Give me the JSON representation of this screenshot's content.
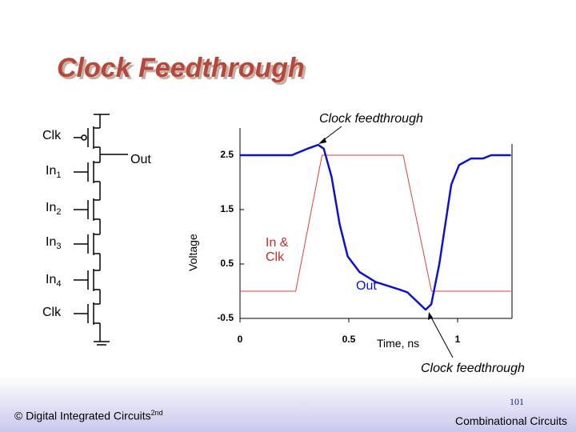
{
  "title": "Clock Feedthrough",
  "circuit": {
    "labels": [
      {
        "text": "Clk"
      },
      {
        "text": "Out"
      },
      {
        "text": "In",
        "sub": "1"
      },
      {
        "text": "In",
        "sub": "2"
      },
      {
        "text": "In",
        "sub": "3"
      },
      {
        "text": "In",
        "sub": "4"
      },
      {
        "text": "Clk"
      }
    ]
  },
  "chart_data": {
    "type": "line",
    "xlabel": "Time, ns",
    "ylabel": "Voltage",
    "xlim": [
      0,
      1.25
    ],
    "ylim": [
      -0.5,
      3
    ],
    "xticks": [
      0,
      0.5,
      1
    ],
    "yticks": [
      -0.5,
      0.5,
      1.5,
      2.5
    ],
    "series": [
      {
        "name": "In & Clk",
        "color": "#e0403a",
        "x": [
          0,
          0.256,
          0.377,
          0.75,
          0.88,
          1.245
        ],
        "values": [
          0,
          0,
          2.5,
          2.5,
          0,
          0
        ]
      },
      {
        "name": "Out",
        "color": "#1010d0",
        "x": [
          0,
          0.238,
          0.311,
          0.359,
          0.385,
          0.421,
          0.458,
          0.495,
          0.55,
          0.623,
          0.733,
          0.769,
          0.806,
          0.853,
          0.879,
          0.916,
          0.971,
          1.007,
          1.062,
          1.117,
          1.154,
          1.245
        ],
        "values": [
          2.5,
          2.5,
          2.62,
          2.69,
          2.62,
          2.1,
          1.23,
          0.64,
          0.35,
          0.17,
          0.03,
          -0.02,
          -0.16,
          -0.34,
          -0.24,
          0.5,
          1.96,
          2.32,
          2.44,
          2.44,
          2.5,
          2.5
        ]
      }
    ],
    "annotations": [
      "Clock feedthrough",
      "Clock feedthrough"
    ]
  },
  "footer": {
    "copyright": {
      "text": "© Digital Integrated Circuits",
      "sup": "2nd"
    },
    "page": "101",
    "section": "Combinational Circuits"
  }
}
